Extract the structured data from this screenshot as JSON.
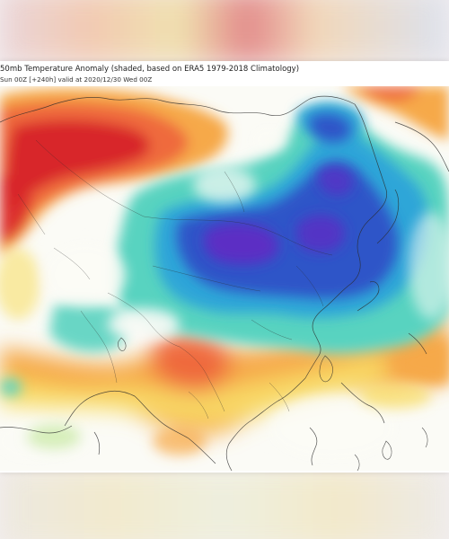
{
  "map": {
    "title": "50mb Temperature Anomaly (shaded, based on ERA5 1979-2018 Climatology)",
    "subtitle": "Sun 00Z [+240h] valid at 2020/12/30 Wed 00Z",
    "colors": {
      "strong_warm": "#d8262a",
      "warm": "#ef6a3c",
      "mild_warm": "#f6a94a",
      "slight_warm": "#f8e06a",
      "neutral": "#ffffff",
      "slight_cold": "#59d3c0",
      "cold": "#2fa6d8",
      "very_cold": "#2d55c8",
      "extreme_cold": "#5b2fc4"
    }
  }
}
